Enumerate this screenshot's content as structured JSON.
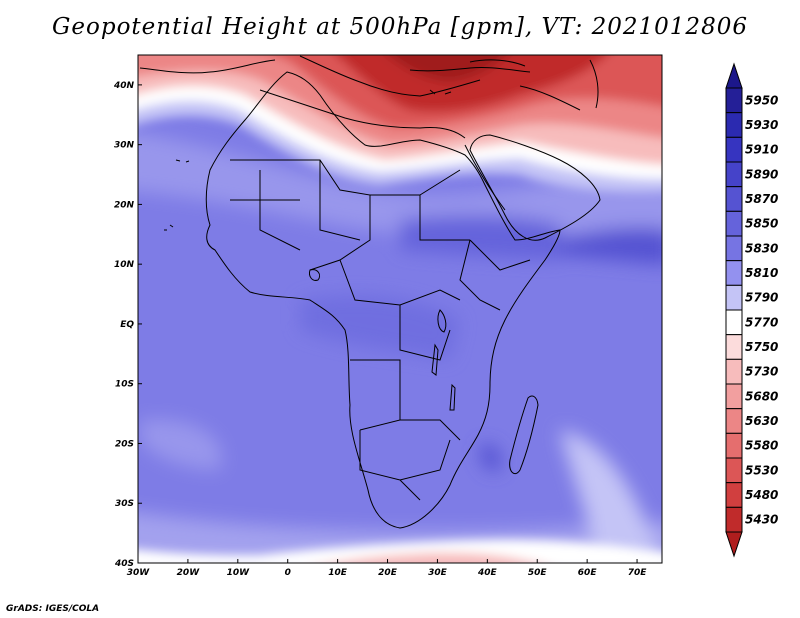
{
  "title": "Geopotential Height at 500hPa [gpm], VT: 2021012806",
  "credit": "GrADS: IGES/COLA",
  "map": {
    "variable": "Geopotential Height at 500hPa",
    "units": "gpm",
    "valid_time": "2021012806",
    "lon_range": [
      -30,
      75
    ],
    "lat_range": [
      -40,
      45
    ],
    "lon_ticks": [
      {
        "value": -30,
        "label": "30W"
      },
      {
        "value": -20,
        "label": "20W"
      },
      {
        "value": -10,
        "label": "10W"
      },
      {
        "value": 0,
        "label": "0"
      },
      {
        "value": 10,
        "label": "10E"
      },
      {
        "value": 20,
        "label": "20E"
      },
      {
        "value": 30,
        "label": "30E"
      },
      {
        "value": 40,
        "label": "40E"
      },
      {
        "value": 50,
        "label": "50E"
      },
      {
        "value": 60,
        "label": "60E"
      },
      {
        "value": 70,
        "label": "70E"
      }
    ],
    "lat_ticks": [
      {
        "value": 40,
        "label": "40N"
      },
      {
        "value": 30,
        "label": "30N"
      },
      {
        "value": 20,
        "label": "20N"
      },
      {
        "value": 10,
        "label": "10N"
      },
      {
        "value": 0,
        "label": "EQ"
      },
      {
        "value": -10,
        "label": "10S"
      },
      {
        "value": -20,
        "label": "20S"
      },
      {
        "value": -30,
        "label": "30S"
      },
      {
        "value": -40,
        "label": "40S"
      }
    ]
  },
  "colorbar": {
    "levels": [
      {
        "label": "5950",
        "color": "#241f97"
      },
      {
        "label": "5930",
        "color": "#2b2ab0"
      },
      {
        "label": "5910",
        "color": "#3634c0"
      },
      {
        "label": "5890",
        "color": "#4543c9"
      },
      {
        "label": "5870",
        "color": "#5553d2"
      },
      {
        "label": "5850",
        "color": "#6563db"
      },
      {
        "label": "5830",
        "color": "#7674e3"
      },
      {
        "label": "5810",
        "color": "#9391ef"
      },
      {
        "label": "5790",
        "color": "#c4c4f6"
      },
      {
        "label": "5770",
        "color": "#ffffff"
      },
      {
        "label": "5750",
        "color": "#fcdcdc"
      },
      {
        "label": "5730",
        "color": "#f7bcbc"
      },
      {
        "label": "5680",
        "color": "#f29f9f"
      },
      {
        "label": "5630",
        "color": "#ec8686"
      },
      {
        "label": "5580",
        "color": "#e56e6e"
      },
      {
        "label": "5530",
        "color": "#dc5656"
      },
      {
        "label": "5480",
        "color": "#d13f3f"
      },
      {
        "label": "5430",
        "color": "#c02b2b"
      }
    ],
    "top_triangle_color": "#1c178a",
    "bottom_triangle_color": "#b01e1e"
  }
}
